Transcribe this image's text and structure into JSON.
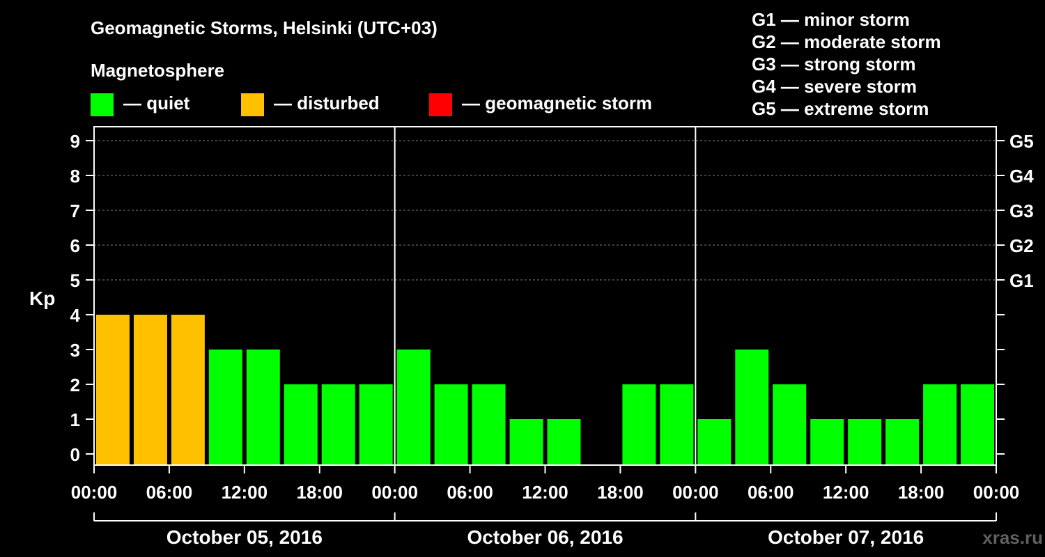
{
  "chart_data": {
    "type": "bar",
    "title": "Geomagnetic Storms, Helsinki (UTC+03)",
    "legend_title": "Magnetosphere",
    "legend": [
      {
        "label": "— quiet",
        "color": "#00ff00"
      },
      {
        "label": "— disturbed",
        "color": "#ffc000"
      },
      {
        "label": "— geomagnetic storm",
        "color": "#ff0000"
      }
    ],
    "storm_scale": [
      "G1 — minor storm",
      "G2 — moderate storm",
      "G3 — strong storm",
      "G4 — severe storm",
      "G5 — extreme storm"
    ],
    "ylabel": "Kp",
    "ylim": [
      0,
      9
    ],
    "y_ticks": [
      "0",
      "1",
      "2",
      "3",
      "4",
      "5",
      "6",
      "7",
      "8",
      "9"
    ],
    "right_ticks": [
      {
        "kp": 5,
        "label": "G1"
      },
      {
        "kp": 6,
        "label": "G2"
      },
      {
        "kp": 7,
        "label": "G3"
      },
      {
        "kp": 8,
        "label": "G4"
      },
      {
        "kp": 9,
        "label": "G5"
      }
    ],
    "x_ticks": [
      "00:00",
      "06:00",
      "12:00",
      "18:00",
      "00:00",
      "06:00",
      "12:00",
      "18:00",
      "00:00",
      "06:00",
      "12:00",
      "18:00",
      "00:00"
    ],
    "days": [
      "October 05, 2016",
      "October 06, 2016",
      "October 07, 2016"
    ],
    "values": [
      4,
      4,
      4,
      3,
      3,
      2,
      2,
      2,
      3,
      2,
      2,
      1,
      1,
      0,
      2,
      2,
      1,
      3,
      2,
      1,
      1,
      1,
      2,
      2
    ],
    "status": [
      "disturbed",
      "disturbed",
      "disturbed",
      "quiet",
      "quiet",
      "quiet",
      "quiet",
      "quiet",
      "quiet",
      "quiet",
      "quiet",
      "quiet",
      "quiet",
      "quiet",
      "quiet",
      "quiet",
      "quiet",
      "quiet",
      "quiet",
      "quiet",
      "quiet",
      "quiet",
      "quiet",
      "quiet"
    ],
    "colors": {
      "quiet": "#00ff00",
      "disturbed": "#ffc000",
      "storm": "#ff0000",
      "grid": "#808080",
      "axis": "#ffffff"
    },
    "watermark": "xras.ru"
  }
}
